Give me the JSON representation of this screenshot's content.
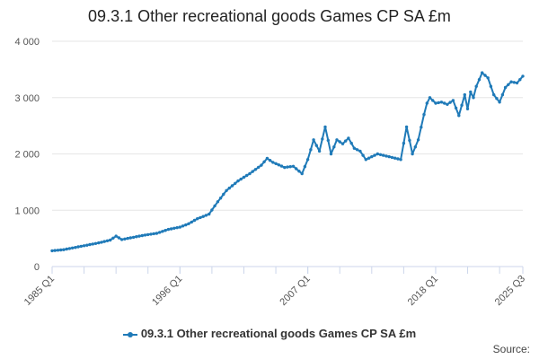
{
  "chart_data": {
    "type": "line",
    "title": "09.3.1 Other recreational goods Games CP SA £m",
    "xlabel": "",
    "ylabel": "",
    "ylim": [
      0,
      4000
    ],
    "y_ticks": [
      0,
      1000,
      2000,
      3000,
      4000
    ],
    "y_tick_labels": [
      "0",
      "1 000",
      "2 000",
      "3 000",
      "4 000"
    ],
    "x_range": [
      1985.0,
      2025.5
    ],
    "x_ticks": [
      1985.0,
      1996.0,
      2007.0,
      2018.0,
      2025.5
    ],
    "x_tick_labels": [
      "1985 Q1",
      "1996 Q1",
      "2007 Q1",
      "2018 Q1",
      "2025 Q3"
    ],
    "grid": "horizontal",
    "legend_position": "bottom",
    "series": [
      {
        "name": "09.3.1 Other recreational goods Games CP SA £m",
        "color": "#1f7ab8",
        "x": [
          1985.0,
          1986.0,
          1987.0,
          1988.0,
          1989.0,
          1990.0,
          1990.5,
          1991.0,
          1992.0,
          1993.0,
          1994.0,
          1995.0,
          1996.0,
          1996.75,
          1997.5,
          1998.5,
          1999.25,
          2000.0,
          2001.0,
          2002.0,
          2003.0,
          2003.5,
          2004.0,
          2005.0,
          2005.75,
          2006.5,
          2007.0,
          2007.5,
          2008.0,
          2008.5,
          2009.0,
          2009.5,
          2010.0,
          2010.5,
          2011.0,
          2011.5,
          2012.0,
          2012.5,
          2013.0,
          2014.0,
          2015.0,
          2015.5,
          2016.0,
          2016.5,
          2017.0,
          2017.25,
          2017.5,
          2018.0,
          2018.5,
          2019.0,
          2019.5,
          2020.0,
          2020.5,
          2020.75,
          2021.0,
          2021.25,
          2021.5,
          2022.0,
          2022.5,
          2023.0,
          2023.5,
          2024.0,
          2024.5,
          2025.0,
          2025.5
        ],
        "values": [
          280,
          300,
          340,
          380,
          420,
          470,
          540,
          480,
          520,
          560,
          590,
          660,
          700,
          760,
          850,
          930,
          1150,
          1350,
          1520,
          1650,
          1800,
          1920,
          1850,
          1760,
          1780,
          1650,
          1900,
          2250,
          2050,
          2480,
          2000,
          2250,
          2180,
          2280,
          2100,
          2050,
          1900,
          1950,
          2000,
          1950,
          1900,
          2480,
          2000,
          2250,
          2700,
          2900,
          3000,
          2900,
          2920,
          2880,
          2950,
          2680,
          3050,
          2800,
          3100,
          3000,
          3200,
          3440,
          3350,
          3050,
          2920,
          3180,
          3280,
          3260,
          3380
        ]
      }
    ],
    "legend_label": "09.3.1 Other recreational goods Games CP SA £m",
    "source_label": "Source:"
  }
}
